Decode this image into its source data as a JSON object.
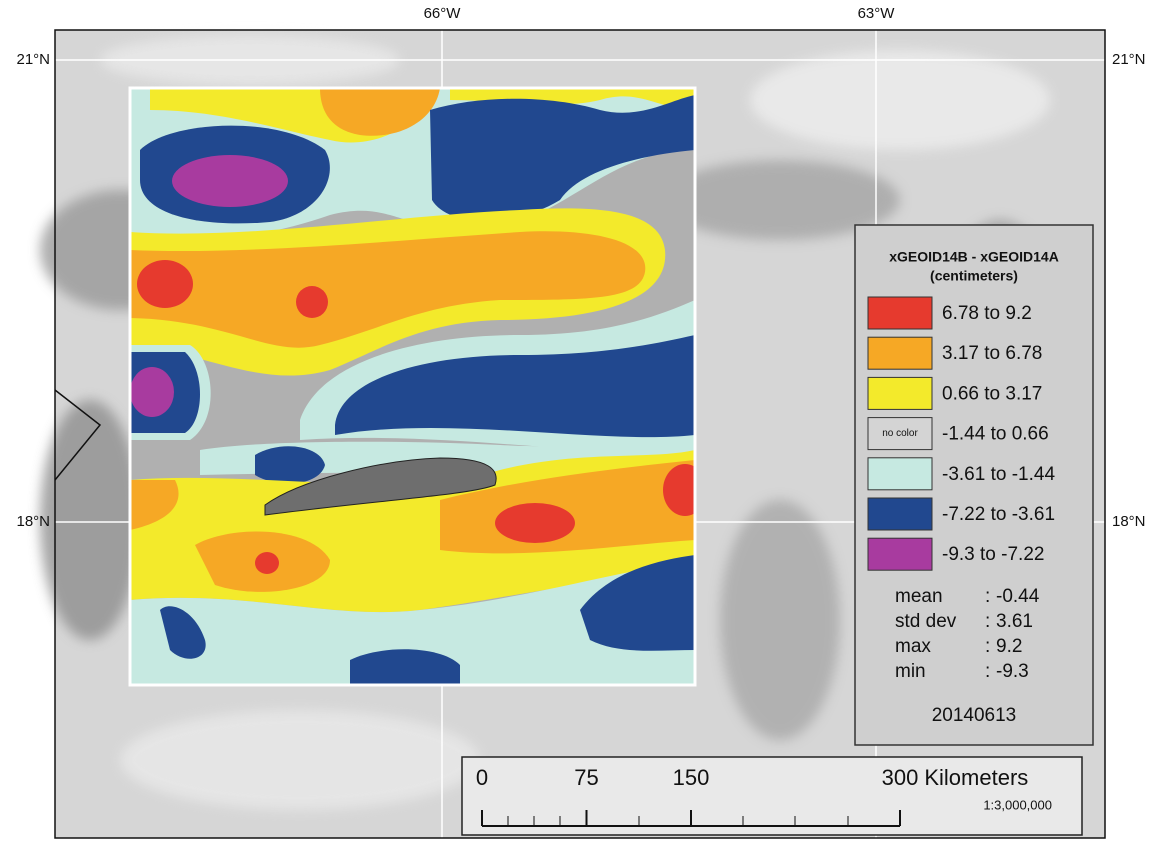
{
  "map": {
    "lon_labels": [
      "66°W",
      "63°W"
    ],
    "lat_labels": [
      "21°N",
      "18°N"
    ],
    "legend": {
      "title": [
        "xGEOID14B - xGEOID14A",
        "(centimeters)"
      ],
      "entries": [
        {
          "label": "6.78 to 9.2",
          "color": "#e63a2e"
        },
        {
          "label": "3.17 to 6.78",
          "color": "#f6a825"
        },
        {
          "label": "0.66 to 3.17",
          "color": "#f3ea2b"
        },
        {
          "label": "-1.44 to 0.66",
          "color": "#d4d4d4",
          "swatch_text": "no color"
        },
        {
          "label": "-3.61 to -1.44",
          "color": "#c6e9e1"
        },
        {
          "label": "-7.22 to -3.61",
          "color": "#21488f"
        },
        {
          "label": "-9.3 to -7.22",
          "color": "#a83b9f"
        }
      ],
      "separator": ":",
      "stats": [
        {
          "label": "mean",
          "value": -0.44
        },
        {
          "label": "std dev",
          "value": 3.61
        },
        {
          "label": "max",
          "value": 9.2
        },
        {
          "label": "min",
          "value": -9.3
        }
      ],
      "date": "20140613"
    },
    "scale_bar": {
      "ticks": [
        0,
        75,
        150,
        300
      ],
      "unit": "Kilometers",
      "ratio": "1:3,000,000"
    }
  }
}
